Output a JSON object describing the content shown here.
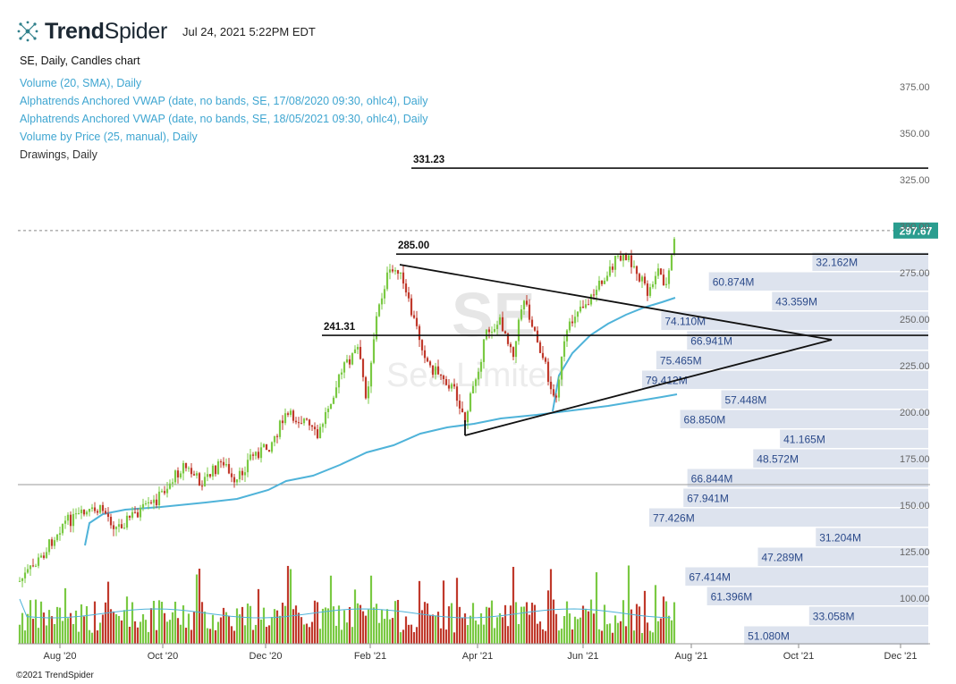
{
  "header": {
    "brand_bold": "Trend",
    "brand_regular": "Spider",
    "timestamp": "Jul 24, 2021 5:22PM EDT",
    "chart_title": "SE, Daily, Candles chart",
    "indicators": [
      {
        "label": "Volume (20, SMA), Daily",
        "color": "#3fa6d1"
      },
      {
        "label": "Alphatrends Anchored VWAP (date, no bands, SE, 17/08/2020 09:30, ohlc4), Daily",
        "color": "#3fa6d1"
      },
      {
        "label": "Alphatrends Anchored VWAP (date, no bands, SE, 18/05/2021 09:30, ohlc4), Daily",
        "color": "#3fa6d1"
      },
      {
        "label": "Volume by Price (25, manual), Daily",
        "color": "#3fa6d1"
      },
      {
        "label": "Drawings, Daily",
        "color": "#333333"
      }
    ],
    "footer": "©2021 TrendSpider"
  },
  "chart_data": {
    "type": "candlestick",
    "symbol": "SE",
    "watermark_symbol": "SE",
    "watermark_name": "Sea Limited",
    "current_price": "297.67",
    "y_ticks": [
      "375.00",
      "350.00",
      "325.00",
      "300.00",
      "275.00",
      "250.00",
      "225.00",
      "200.00",
      "175.00",
      "150.00",
      "125.00",
      "100.00"
    ],
    "y_tick_values": [
      375,
      350,
      325,
      300,
      275,
      250,
      225,
      200,
      175,
      150,
      125,
      100
    ],
    "x_ticks": [
      "Aug '20",
      "Oct '20",
      "Dec '20",
      "Feb '21",
      "Apr '21",
      "Jun '21",
      "Aug '21",
      "Oct '21",
      "Dec '21"
    ],
    "levels": [
      {
        "label": "331.23",
        "value": 331.23
      },
      {
        "label": "285.00",
        "value": 285.0
      },
      {
        "label": "241.31",
        "value": 241.31
      }
    ],
    "volume_by_price": [
      {
        "label": "32.162M",
        "value": 32.162
      },
      {
        "label": "60.874M",
        "value": 60.874
      },
      {
        "label": "43.359M",
        "value": 43.359
      },
      {
        "label": "74.110M",
        "value": 74.11
      },
      {
        "label": "66.941M",
        "value": 66.941
      },
      {
        "label": "75.465M",
        "value": 75.465
      },
      {
        "label": "79.412M",
        "value": 79.412
      },
      {
        "label": "57.448M",
        "value": 57.448
      },
      {
        "label": "68.850M",
        "value": 68.85
      },
      {
        "label": "41.165M",
        "value": 41.165
      },
      {
        "label": "48.572M",
        "value": 48.572
      },
      {
        "label": "66.844M",
        "value": 66.844
      },
      {
        "label": "67.941M",
        "value": 67.941
      },
      {
        "label": "77.426M",
        "value": 77.426
      },
      {
        "label": "31.204M",
        "value": 31.204
      },
      {
        "label": "47.289M",
        "value": 47.289
      },
      {
        "label": "67.414M",
        "value": 67.414
      },
      {
        "label": "61.396M",
        "value": 61.396
      },
      {
        "label": "33.058M",
        "value": 33.058
      },
      {
        "label": "51.080M",
        "value": 51.08
      }
    ],
    "colors": {
      "up": "#7ac943",
      "down": "#c0392b",
      "vwap": "#4fb3d9",
      "vbp": "#dde3ee",
      "badge": "#2a9d8f"
    }
  }
}
